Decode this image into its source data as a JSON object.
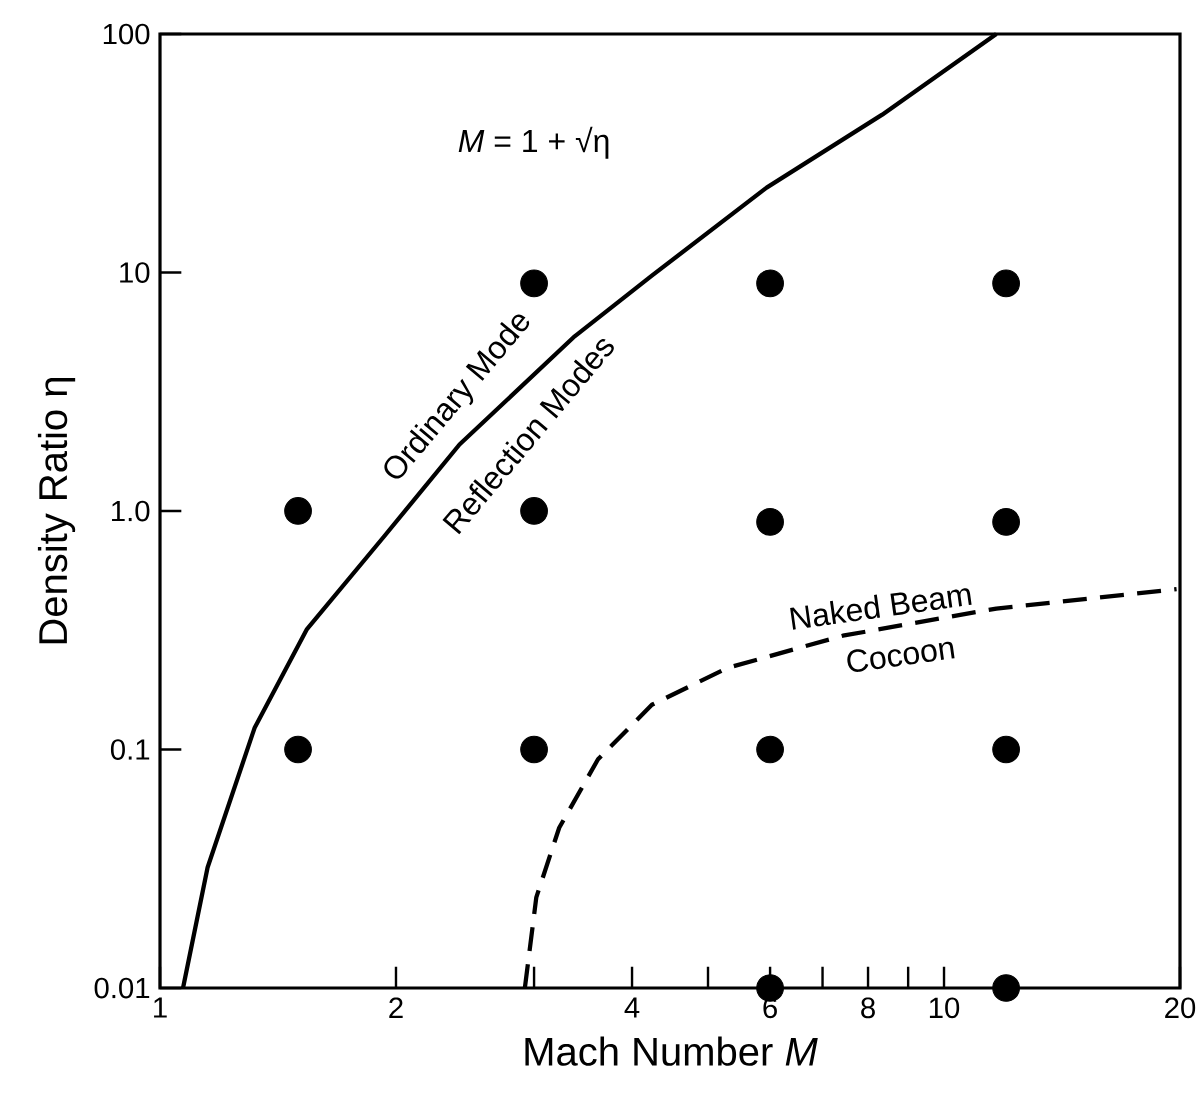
{
  "chart_data": {
    "type": "scatter",
    "xlabel": "Mach Number *M*",
    "ylabel": "Density Ratio  η",
    "log": "xy",
    "xlim": [
      1,
      20
    ],
    "ylim": [
      0.01,
      100
    ],
    "xticks": [
      1,
      2,
      {
        "value": 3,
        "label": null
      },
      4,
      {
        "value": 5,
        "label": null
      },
      6,
      {
        "value": 7,
        "label": null
      },
      8,
      {
        "value": 9,
        "label": null
      },
      10,
      20
    ],
    "yticks": [
      {
        "value": 0.01,
        "label": "0.01"
      },
      0.1,
      {
        "value": 1,
        "label": "1.0"
      },
      10,
      100
    ],
    "series": [
      {
        "color": "#000000",
        "x": [
          3,
          6,
          12,
          1.5,
          3,
          6,
          12,
          1.5,
          3,
          6,
          12,
          6,
          12
        ],
        "values": [
          9,
          9,
          9,
          1,
          1,
          0.9,
          0.9,
          0.1,
          0.1,
          0.1,
          0.1,
          0.01,
          0.01
        ]
      },
      {
        "type": "line",
        "color": "#000000",
        "line_style": "solid",
        "x": [
          1.07,
          1.15,
          1.32,
          1.54,
          1.93,
          2.41,
          3.38,
          4.24,
          5.94,
          8.34,
          11.66
        ],
        "values": [
          0.01,
          0.032,
          0.123,
          0.32,
          0.78,
          1.9,
          5.4,
          9.7,
          22.7,
          45.9,
          100
        ]
      },
      {
        "type": "line",
        "color": "#000000",
        "line_style": "dashed",
        "x": [
          2.92,
          3.02,
          3.23,
          3.62,
          4.24,
          5.3,
          7.43,
          11.66,
          19.8
        ],
        "values": [
          0.01,
          0.024,
          0.047,
          0.091,
          0.154,
          0.22,
          0.3,
          0.39,
          0.47
        ]
      }
    ],
    "annotations": [
      "*M* = 1 + √η",
      "Ordinary Mode",
      "Reflection Modes",
      "Naked Beam",
      "Cocoon"
    ]
  }
}
